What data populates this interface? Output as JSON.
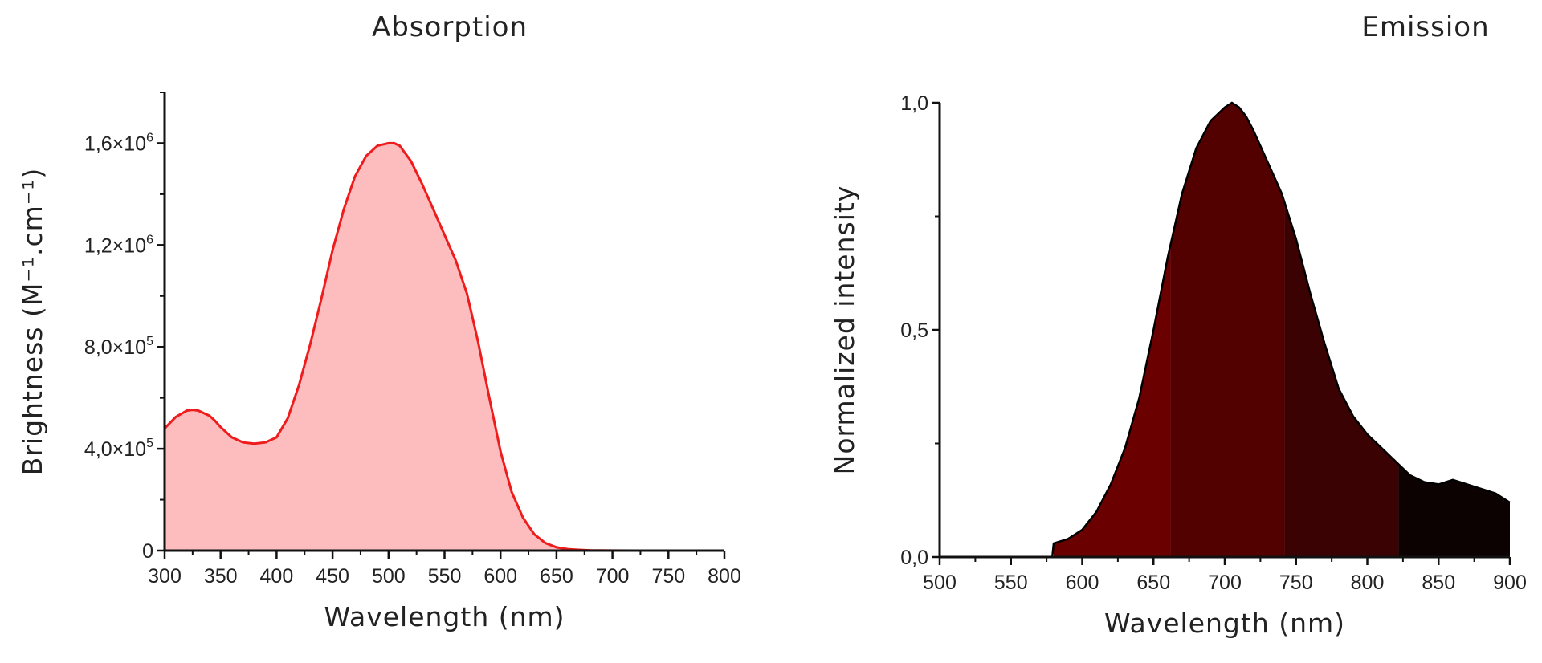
{
  "chart_data": [
    {
      "type": "area",
      "title": "Absorption",
      "xlabel": "Wavelength (nm)",
      "ylabel": "Brightness (M⁻¹.cm⁻¹)",
      "xlim": [
        300,
        800
      ],
      "ylim": [
        0,
        1800000
      ],
      "x_ticks": [
        300,
        350,
        400,
        450,
        500,
        550,
        600,
        650,
        700,
        750,
        800
      ],
      "y_ticks": [
        {
          "value": 0,
          "mantissa": "0",
          "exp": ""
        },
        {
          "value": 400000,
          "mantissa": "4,0×10",
          "exp": "5"
        },
        {
          "value": 800000,
          "mantissa": "8,0×10",
          "exp": "5"
        },
        {
          "value": 1200000,
          "mantissa": "1,2×10",
          "exp": "6"
        },
        {
          "value": 1600000,
          "mantissa": "1,6×10",
          "exp": "6"
        }
      ],
      "line_color": "#ee1c1c",
      "fill_color": "#fdbcbe",
      "grid": false,
      "series": [
        {
          "x": [
            300,
            310,
            320,
            325,
            330,
            335,
            340,
            345,
            350,
            360,
            370,
            380,
            390,
            400,
            410,
            420,
            430,
            440,
            450,
            460,
            470,
            480,
            490,
            500,
            505,
            510,
            520,
            530,
            540,
            550,
            560,
            570,
            580,
            590,
            600,
            610,
            620,
            630,
            640,
            650,
            660,
            670,
            680,
            690,
            700,
            720,
            750,
            800
          ],
          "y": [
            480000,
            525000,
            550000,
            553000,
            550000,
            540000,
            530000,
            510000,
            485000,
            445000,
            425000,
            420000,
            425000,
            445000,
            520000,
            650000,
            810000,
            990000,
            1180000,
            1340000,
            1470000,
            1550000,
            1590000,
            1600000,
            1600000,
            1590000,
            1530000,
            1440000,
            1340000,
            1240000,
            1140000,
            1010000,
            820000,
            600000,
            390000,
            230000,
            130000,
            65000,
            30000,
            13000,
            6000,
            3000,
            1200,
            500,
            200,
            0,
            0,
            0
          ]
        }
      ]
    },
    {
      "type": "area",
      "title": "Emission",
      "xlabel": "Wavelength (nm)",
      "ylabel": "Normalized intensity",
      "xlim": [
        500,
        900
      ],
      "ylim": [
        0,
        1.0
      ],
      "x_ticks": [
        500,
        550,
        600,
        650,
        700,
        750,
        800,
        850,
        900
      ],
      "y_ticks": [
        {
          "value": 0,
          "label": "0,0"
        },
        {
          "value": 0.5,
          "label": "0,5"
        },
        {
          "value": 1.0,
          "label": "1,0"
        }
      ],
      "line_color": "#000000",
      "bands": [
        {
          "from": 580,
          "to": 662,
          "color": "#6a0000"
        },
        {
          "from": 662,
          "to": 742,
          "color": "#520000"
        },
        {
          "from": 742,
          "to": 822,
          "color": "#3a0202"
        },
        {
          "from": 822,
          "to": 900,
          "color": "#0d0202"
        }
      ],
      "grid": false,
      "series": [
        {
          "x": [
            500,
            579,
            580,
            590,
            600,
            610,
            620,
            630,
            640,
            650,
            660,
            670,
            680,
            690,
            700,
            705,
            710,
            715,
            720,
            730,
            740,
            750,
            760,
            770,
            780,
            790,
            800,
            810,
            820,
            830,
            840,
            850,
            860,
            870,
            880,
            890,
            900
          ],
          "y": [
            0,
            0,
            0.03,
            0.04,
            0.06,
            0.1,
            0.16,
            0.24,
            0.35,
            0.5,
            0.66,
            0.8,
            0.9,
            0.96,
            0.99,
            1.0,
            0.99,
            0.97,
            0.94,
            0.87,
            0.8,
            0.7,
            0.58,
            0.47,
            0.37,
            0.31,
            0.27,
            0.24,
            0.21,
            0.18,
            0.165,
            0.16,
            0.17,
            0.16,
            0.15,
            0.14,
            0.12
          ]
        }
      ]
    }
  ]
}
